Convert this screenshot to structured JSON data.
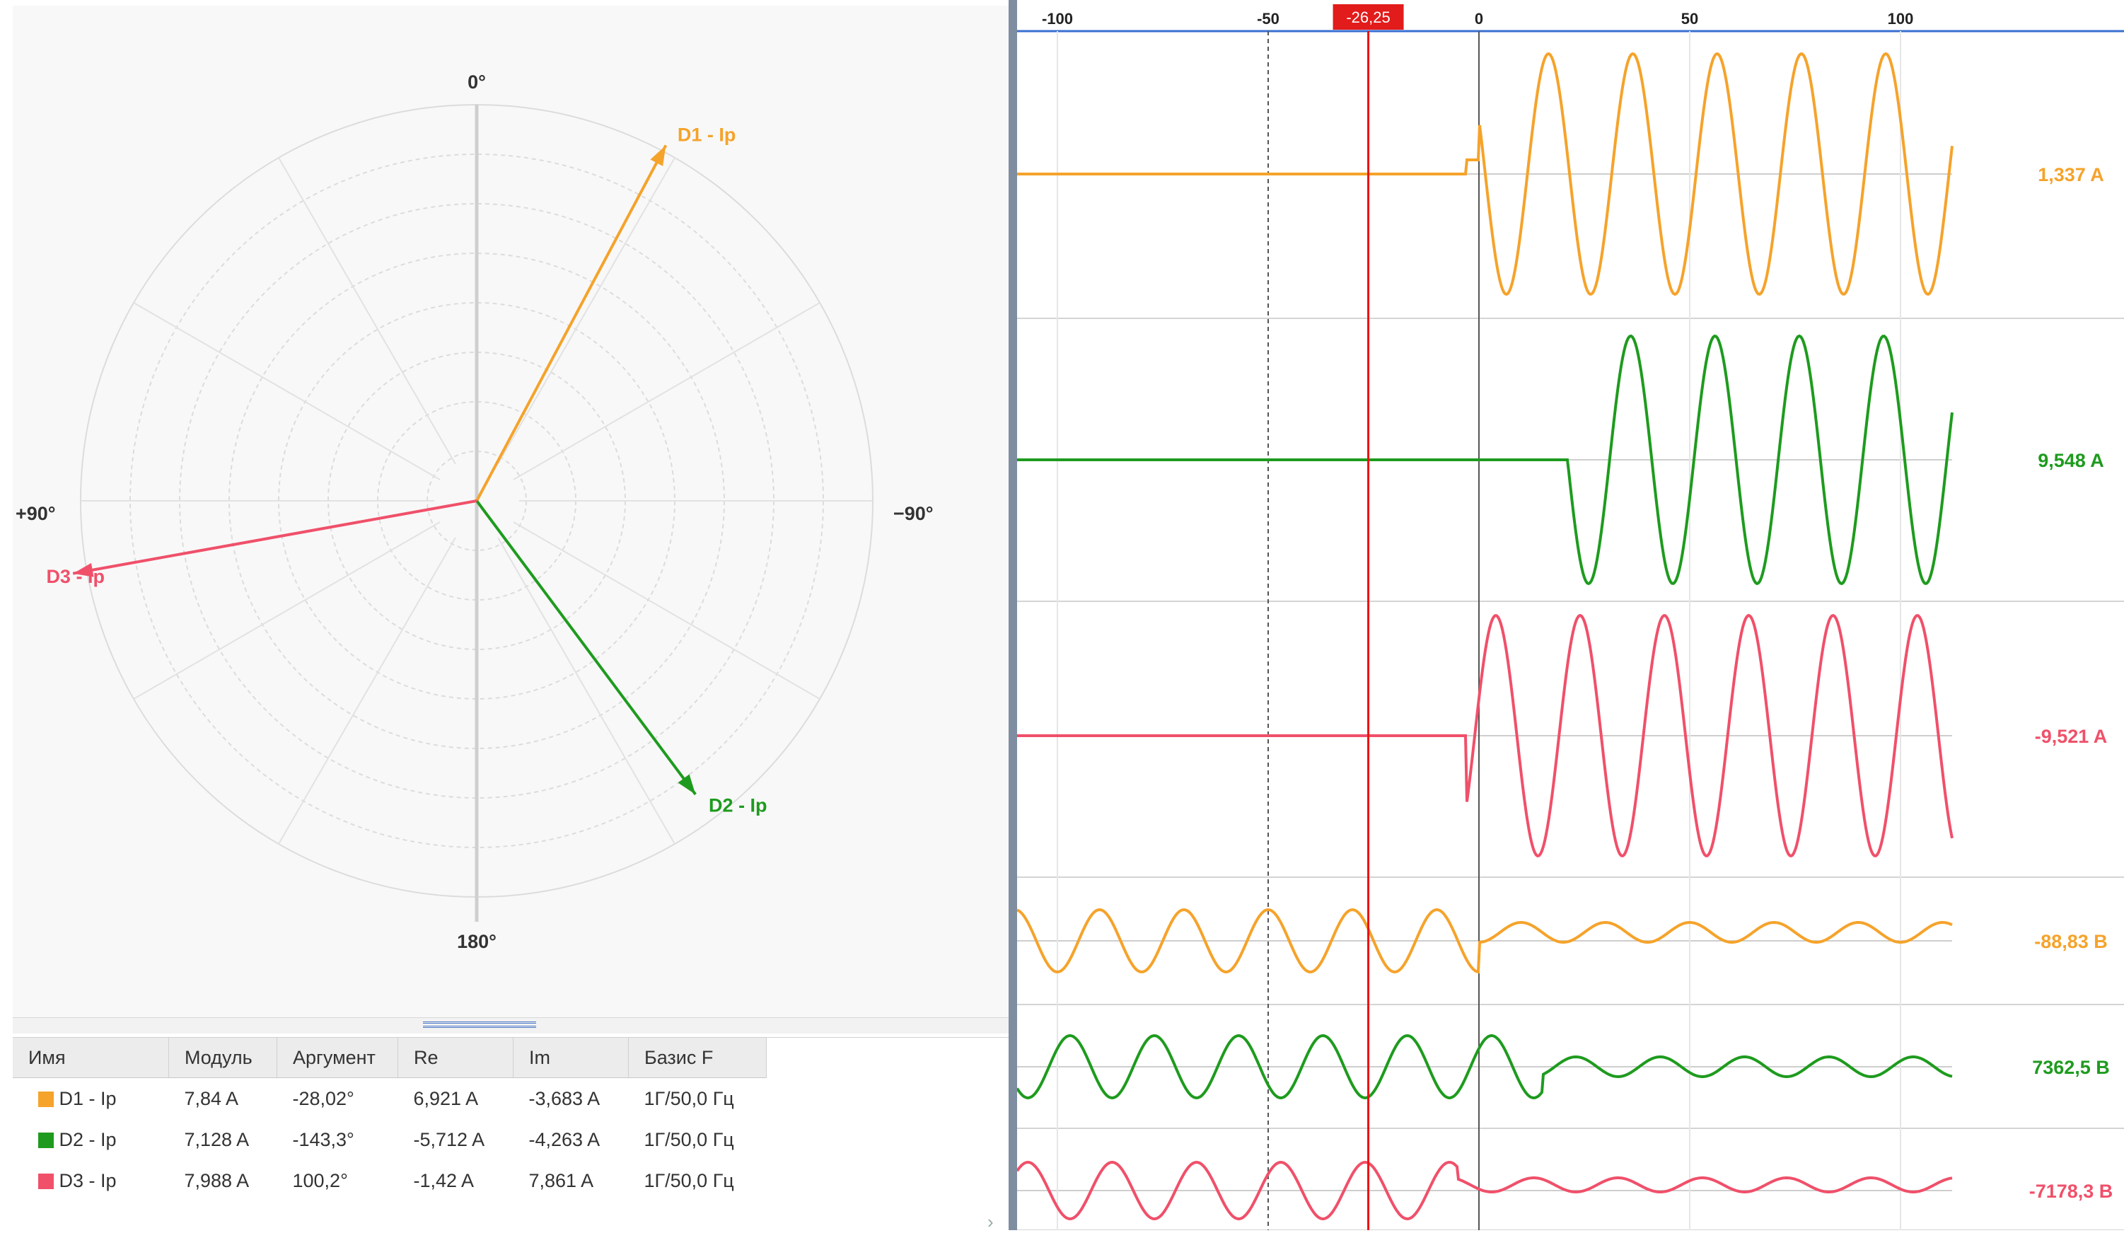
{
  "vector_diagram": {
    "axis_labels": {
      "top": "0°",
      "bottom": "180°",
      "left": "+90°",
      "right": "−90°"
    },
    "phasors": [
      {
        "name": "D1 - Ip",
        "color": "#f5a32b",
        "angle_deg": -28.02,
        "magnitude": 7.84
      },
      {
        "name": "D2 - Ip",
        "color": "#1e9b1e",
        "angle_deg": -143.3,
        "magnitude": 7.128
      },
      {
        "name": "D3 - Ip",
        "color": "#f0506a",
        "angle_deg": 100.2,
        "magnitude": 7.988
      }
    ]
  },
  "splitter": {
    "grip": "======="
  },
  "table": {
    "headers": [
      "Имя",
      "Модуль",
      "Аргумент",
      "Re",
      "Im",
      "Базис F"
    ],
    "rows": [
      {
        "color": "#f5a32b",
        "name": "D1 - Ip",
        "module": "7,84 A",
        "argument": "-28,02°",
        "re": "6,921 A",
        "im": "-3,683 A",
        "basis": "1Г/50,0 Гц"
      },
      {
        "color": "#1e9b1e",
        "name": "D2 - Ip",
        "module": "7,128 A",
        "argument": "-143,3°",
        "re": "-5,712 A",
        "im": "-4,263 A",
        "basis": "1Г/50,0 Гц"
      },
      {
        "color": "#f0506a",
        "name": "D3 - Ip",
        "module": "7,988 A",
        "argument": "100,2°",
        "re": "-1,42 A",
        "im": "7,861 A",
        "basis": "1Г/50,0 Гц"
      }
    ]
  },
  "waveform": {
    "time_ticks": [
      "-100",
      "-50",
      "0",
      "50",
      "100"
    ],
    "cursor_label": "-26,25",
    "cursor_time": -26.25,
    "channels": [
      {
        "value_label": "1,337 A",
        "color": "#f5a32b"
      },
      {
        "value_label": "9,548 A",
        "color": "#1e9b1e"
      },
      {
        "value_label": "-9,521 A",
        "color": "#f0506a"
      },
      {
        "value_label": "-88,83 B",
        "color": "#f5a32b"
      },
      {
        "value_label": "7362,5 B",
        "color": "#1e9b1e"
      },
      {
        "value_label": "-7178,3 B",
        "color": "#f0506a"
      }
    ]
  }
}
